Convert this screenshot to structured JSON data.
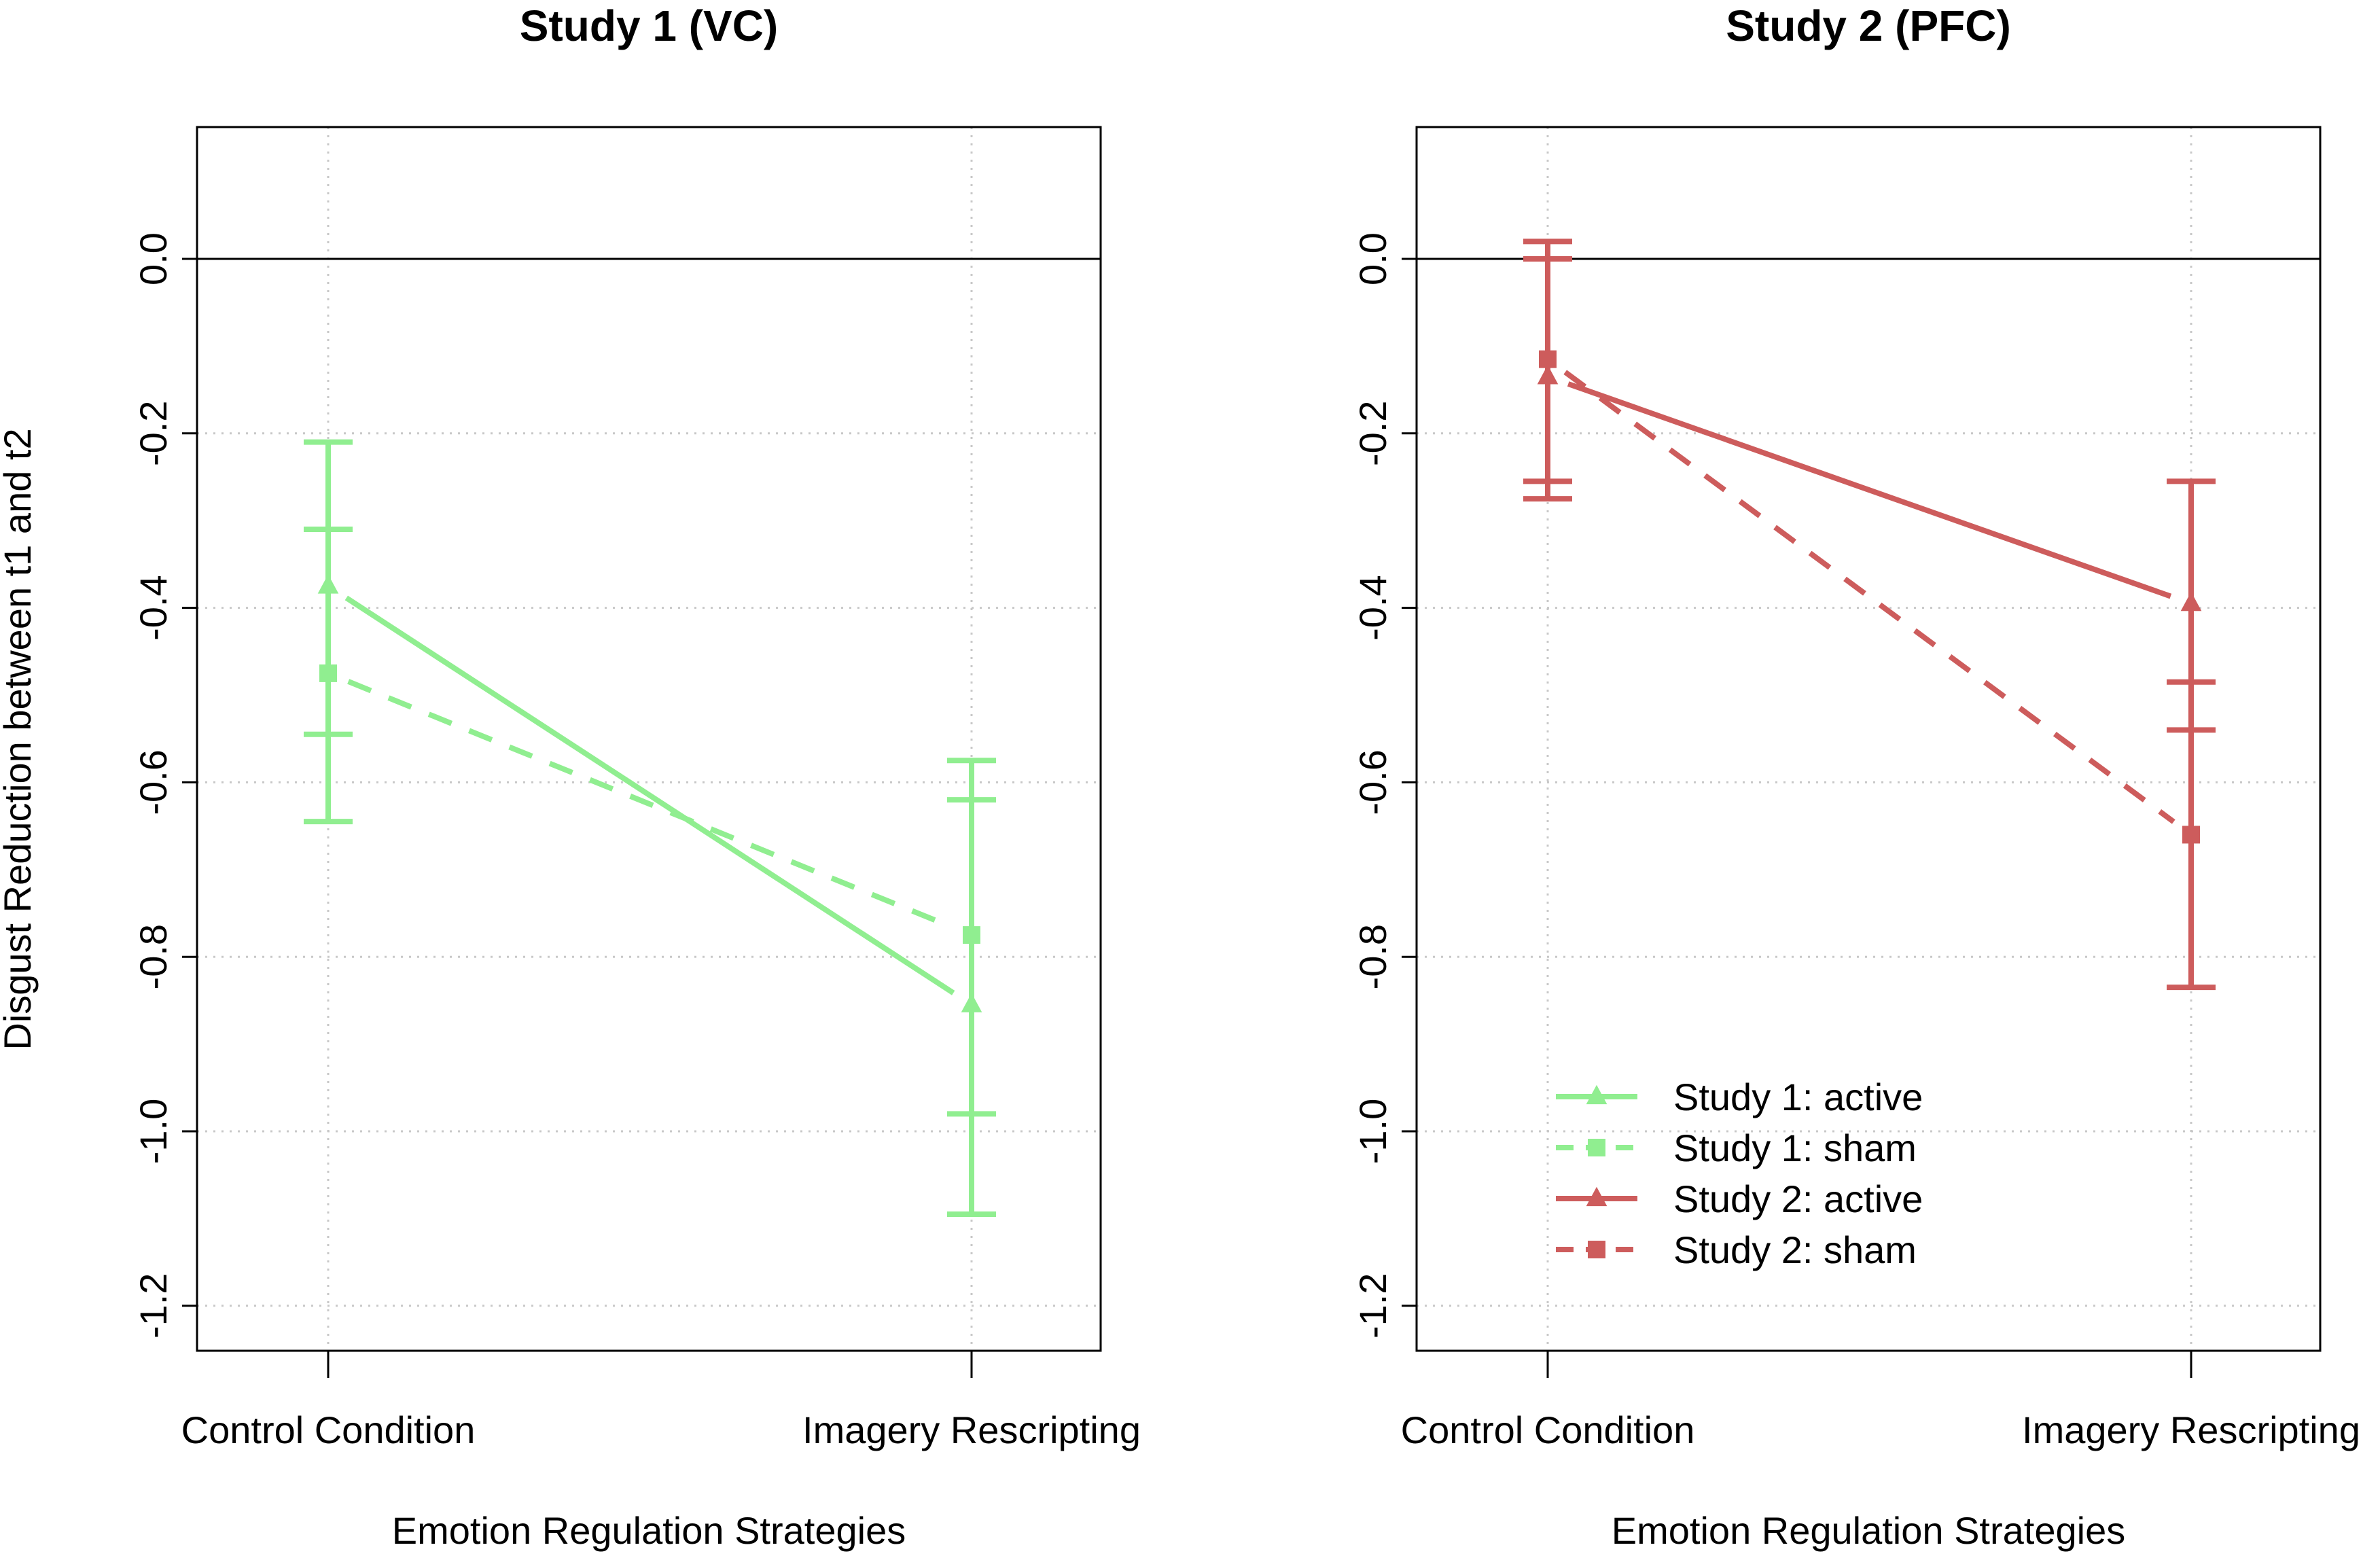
{
  "chart_data": [
    {
      "type": "line",
      "panel": "left",
      "title": "Study 1 (VC)",
      "xlabel": "Emotion Regulation Strategies",
      "ylabel": "Disgust Reduction between t1 and t2",
      "categories": [
        "Control Condition",
        "Imagery Rescripting"
      ],
      "ylim": [
        -1.25,
        0.15
      ],
      "yticks": [
        0.0,
        -0.2,
        -0.4,
        -0.6,
        -0.8,
        -1.0,
        -1.2
      ],
      "ytick_labels": [
        "0.0",
        "-0.2",
        "-0.4",
        "-0.6",
        "-0.8",
        "-1.0",
        "-1.2"
      ],
      "grid": true,
      "reference_line": 0.0,
      "series": [
        {
          "name": "Study 1: active",
          "color": "#90ee90",
          "linestyle": "solid",
          "marker": "triangle",
          "values": [
            -0.375,
            -0.855
          ],
          "ci_low": [
            -0.645,
            -1.095
          ],
          "ci_high": [
            -0.21,
            -0.62
          ]
        },
        {
          "name": "Study 1: sham",
          "color": "#90ee90",
          "linestyle": "dashed",
          "marker": "square",
          "values": [
            -0.475,
            -0.775
          ],
          "ci_low": [
            -0.545,
            -0.98
          ],
          "ci_high": [
            -0.31,
            -0.575
          ]
        }
      ]
    },
    {
      "type": "line",
      "panel": "right",
      "title": "Study 2 (PFC)",
      "xlabel": "Emotion Regulation Strategies",
      "ylabel": "",
      "categories": [
        "Control Condition",
        "Imagery Rescripting"
      ],
      "ylim": [
        -1.25,
        0.15
      ],
      "yticks": [
        0.0,
        -0.2,
        -0.4,
        -0.6,
        -0.8,
        -1.0,
        -1.2
      ],
      "ytick_labels": [
        "0.0",
        "-0.2",
        "-0.4",
        "-0.6",
        "-0.8",
        "-1.0",
        "-1.2"
      ],
      "grid": true,
      "reference_line": 0.0,
      "series": [
        {
          "name": "Study 2: active",
          "color": "#cd5c5c",
          "linestyle": "solid",
          "marker": "triangle",
          "values": [
            -0.135,
            -0.395
          ],
          "ci_low": [
            -0.275,
            -0.54
          ],
          "ci_high": [
            0.0,
            -0.255
          ]
        },
        {
          "name": "Study 2: sham",
          "color": "#cd5c5c",
          "linestyle": "dashed",
          "marker": "square",
          "values": [
            -0.115,
            -0.66
          ],
          "ci_low": [
            -0.255,
            -0.835
          ],
          "ci_high": [
            0.02,
            -0.485
          ]
        }
      ],
      "legend": {
        "placement": "bottom-left",
        "entries": [
          {
            "label": "Study 1: active",
            "color": "#90ee90",
            "linestyle": "solid",
            "marker": "triangle"
          },
          {
            "label": "Study 1: sham",
            "color": "#90ee90",
            "linestyle": "dashed",
            "marker": "square"
          },
          {
            "label": "Study 2: active",
            "color": "#cd5c5c",
            "linestyle": "solid",
            "marker": "triangle"
          },
          {
            "label": "Study 2: sham",
            "color": "#cd5c5c",
            "linestyle": "dashed",
            "marker": "square"
          }
        ]
      }
    }
  ]
}
